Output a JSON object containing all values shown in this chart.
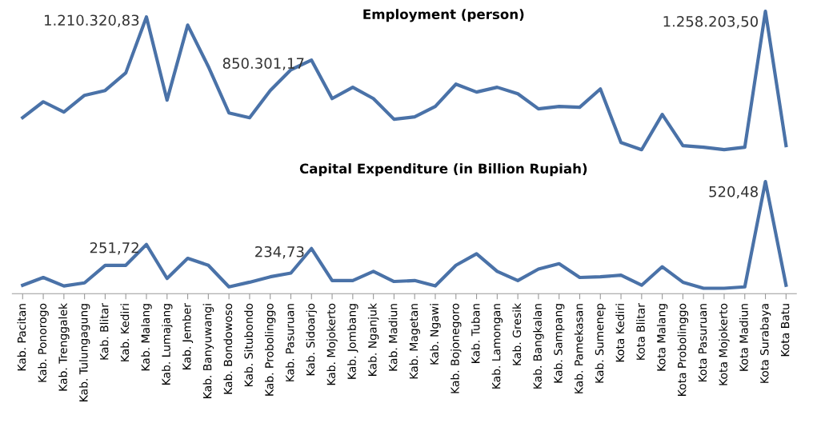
{
  "chart_data": [
    {
      "type": "line",
      "title": "Employment (person)",
      "tick_labels": false,
      "grid": false,
      "categories": [
        null,
        null,
        null,
        null,
        null,
        null,
        null,
        null,
        null,
        null,
        null,
        null,
        null,
        null,
        null,
        null,
        null,
        null,
        null,
        null,
        null,
        null,
        null,
        null,
        null,
        null,
        null,
        null,
        null,
        null,
        null,
        null,
        null,
        null,
        null,
        null,
        null,
        null
      ],
      "series": [
        {
          "color": "#4a72a8",
          "values": [
            370000,
            503000,
            417000,
            557000,
            597000,
            744000,
            1210320.83,
            517000,
            1143000,
            797000,
            410000,
            370000,
            597000,
            770000,
            850301.17,
            530000,
            624000,
            530000,
            357000,
            377000,
            464000,
            650000,
            584000,
            624000,
            570000,
            444000,
            464000,
            457000,
            610000,
            163000,
            103000,
            397000,
            137000,
            123000,
            103000,
            123000,
            1258203.5,
            137000
          ],
          "value_labels": [
            null,
            null,
            null,
            null,
            null,
            null,
            "1.210.320,83",
            null,
            null,
            null,
            null,
            null,
            null,
            null,
            "850.301,17",
            null,
            null,
            null,
            null,
            null,
            null,
            null,
            null,
            null,
            null,
            null,
            null,
            null,
            null,
            null,
            null,
            null,
            null,
            null,
            null,
            null,
            "1.258.203,50",
            null
          ]
        }
      ]
    },
    {
      "type": "line",
      "title": "Capital Expenditure (in Billion Rupiah)",
      "tick_labels": "x",
      "grid": false,
      "categories": [
        "Kab. Pacitan",
        "Kab. Ponorogo",
        "Kab. Trenggalek",
        "Kab. Tulungagung",
        "Kab. Blitar",
        "Kab. Kediri",
        "Kab. Malang",
        "Kab. Lumajang",
        "Kab. Jember",
        "Kab. Banyuwangi",
        "Kab. Bondowoso",
        "Kab. Situbondo",
        "Kab. Probolinggo",
        "Kab. Pasuruan",
        "Kab. Sidoarjo",
        "Kab. Mojokerto",
        "Kab. Jombang",
        "Kab. Nganjuk",
        "Kab. Madiun",
        "Kab. Magetan",
        "Kab. Ngawi",
        "Kab. Bojonegoro",
        "Kab. Tuban",
        "Kab. Lamongan",
        "Kab. Gresik",
        "Kab. Bangkalan",
        "Kab. Sampang",
        "Kab. Pamekasan",
        "Kab. Sumenep",
        "Kota Kediri",
        "Kota Blitar",
        "Kota Malang",
        "Kota Probolinggo",
        "Kota Pasuruan",
        "Kota Mojokerto",
        "Kota Madiun",
        "Kota Surabaya",
        "Kota Batu"
      ],
      "series": [
        {
          "color": "#4a72a8",
          "values": [
            78,
            111,
            75,
            88,
            163,
            163,
            251.72,
            107,
            193,
            163,
            71,
            91,
            114,
            130,
            234.73,
            98,
            98,
            137,
            94,
            98,
            75,
            163,
            212,
            137,
            98,
            147,
            170,
            111,
            114,
            121,
            78,
            157,
            91,
            65,
            65,
            71,
            520.48,
            78
          ],
          "value_labels": [
            null,
            null,
            null,
            null,
            null,
            null,
            "251,72",
            null,
            null,
            null,
            null,
            null,
            null,
            null,
            "234,73",
            null,
            null,
            null,
            null,
            null,
            null,
            null,
            null,
            null,
            null,
            null,
            null,
            null,
            null,
            null,
            null,
            null,
            null,
            null,
            null,
            null,
            "520,48",
            null
          ]
        }
      ]
    }
  ]
}
